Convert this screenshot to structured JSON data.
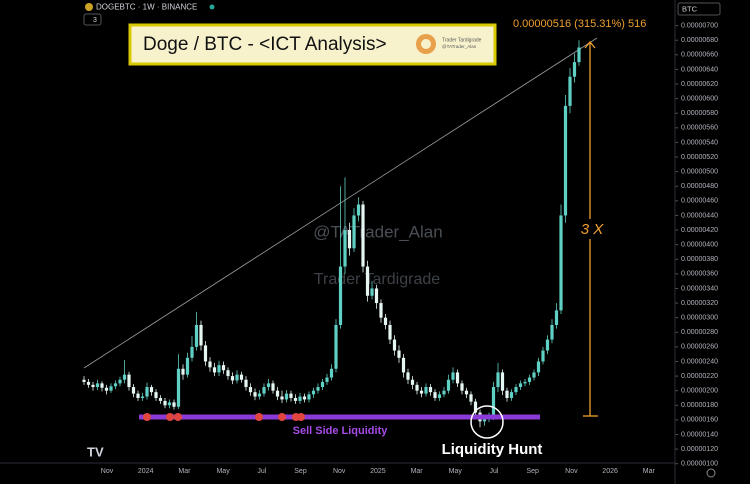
{
  "chart_data": {
    "type": "candlestick",
    "symbol_info": "DOGEBTC · 1W · BINANCE",
    "indicator_count": "3",
    "title": "Doge / BTC - <ICT Analysis>",
    "logo_texts": [
      "Trader Tardigrade",
      "@TATrader_Alan"
    ],
    "watermarks": [
      "@TATrader_Alan",
      "Trader Tardigrade"
    ],
    "measure_label": "0.00000516 (315.31%) 516",
    "multiplier_label": "3 X",
    "level_label": "Sell Side Liquidity",
    "hunt_label": "Liquidity Hunt",
    "price_unit": "BTC",
    "up_color": "#5fd0c4",
    "down_color": "#e6f6f3",
    "time_labels": [
      "Nov",
      "2024",
      "Mar",
      "May",
      "Jul",
      "Sep",
      "Nov",
      "2025",
      "Mar",
      "May",
      "Jul",
      "Sep",
      "Nov",
      "2026",
      "Mar"
    ],
    "ylim": [
      9e-07,
      7.2e-06
    ],
    "yticks": [
      {
        "value": 1e-06,
        "label": "0.00000100"
      },
      {
        "value": 1.2e-06,
        "label": "0.00000120"
      },
      {
        "value": 1.4e-06,
        "label": "0.00000140"
      },
      {
        "value": 1.6e-06,
        "label": "0.00000160"
      },
      {
        "value": 1.8e-06,
        "label": "0.00000180"
      },
      {
        "value": 2e-06,
        "label": "0.00000200"
      },
      {
        "value": 2.2e-06,
        "label": "0.00000220"
      },
      {
        "value": 2.4e-06,
        "label": "0.00000240"
      },
      {
        "value": 2.6e-06,
        "label": "0.00000260"
      },
      {
        "value": 2.8e-06,
        "label": "0.00000280"
      },
      {
        "value": 3e-06,
        "label": "0.00000300"
      },
      {
        "value": 3.2e-06,
        "label": "0.00000320"
      },
      {
        "value": 3.4e-06,
        "label": "0.00000340"
      },
      {
        "value": 3.6e-06,
        "label": "0.00000360"
      },
      {
        "value": 3.8e-06,
        "label": "0.00000380"
      },
      {
        "value": 4e-06,
        "label": "0.00000400"
      },
      {
        "value": 4.2e-06,
        "label": "0.00000420"
      },
      {
        "value": 4.4e-06,
        "label": "0.00000440"
      },
      {
        "value": 4.6e-06,
        "label": "0.00000460"
      },
      {
        "value": 4.8e-06,
        "label": "0.00000480"
      },
      {
        "value": 5e-06,
        "label": "0.00000500"
      },
      {
        "value": 5.2e-06,
        "label": "0.00000520"
      },
      {
        "value": 5.4e-06,
        "label": "0.00000540"
      },
      {
        "value": 5.6e-06,
        "label": "0.00000560"
      },
      {
        "value": 5.8e-06,
        "label": "0.00000580"
      },
      {
        "value": 6e-06,
        "label": "0.00000600"
      },
      {
        "value": 6.2e-06,
        "label": "0.00000620"
      },
      {
        "value": 6.4e-06,
        "label": "0.00000640"
      },
      {
        "value": 6.6e-06,
        "label": "0.00000660"
      },
      {
        "value": 6.8e-06,
        "label": "0.00000680"
      },
      {
        "value": 7e-06,
        "label": "0.00000700"
      }
    ],
    "open": [
      2.15e-06,
      2.12e-06,
      2.08e-06,
      2.05e-06,
      2.1e-06,
      2.04e-06,
      2e-06,
      2.06e-06,
      2.1e-06,
      2.15e-06,
      2.22e-06,
      2.05e-06,
      1.96e-06,
      1.9e-06,
      1.92e-06,
      2.05e-06,
      1.98e-06,
      1.9e-06,
      1.86e-06,
      1.8e-06,
      1.84e-06,
      1.78e-06,
      2.3e-06,
      2.22e-06,
      2.45e-06,
      2.6e-06,
      2.9e-06,
      2.62e-06,
      2.4e-06,
      2.32e-06,
      2.25e-06,
      2.35e-06,
      2.28e-06,
      2.2e-06,
      2.14e-06,
      2.22e-06,
      2.15e-06,
      2.05e-06,
      1.98e-06,
      1.92e-06,
      1.96e-06,
      2.05e-06,
      2.1e-06,
      2e-06,
      1.92e-06,
      1.88e-06,
      1.96e-06,
      1.9e-06,
      1.86e-06,
      1.92e-06,
      1.88e-06,
      1.95e-06,
      2e-06,
      2.05e-06,
      2.12e-06,
      2.18e-06,
      2.3e-06,
      2.9e-06,
      3.7e-06,
      4.2e-06,
      3.95e-06,
      4.4e-06,
      4.55e-06,
      3.7e-06,
      3.3e-06,
      3.4e-06,
      3.2e-06,
      3e-06,
      2.9e-06,
      2.7e-06,
      2.55e-06,
      2.45e-06,
      2.25e-06,
      2.15e-06,
      2.08e-06,
      2e-06,
      1.96e-06,
      2.05e-06,
      1.98e-06,
      1.9e-06,
      1.95e-06,
      2e-06,
      2.15e-06,
      2.25e-06,
      2.1e-06,
      2e-06,
      1.95e-06,
      1.85e-06,
      1.7e-06,
      1.58e-06,
      1.62e-06,
      1.65e-06,
      2.05e-06,
      2.25e-06,
      2e-06,
      1.9e-06,
      1.98e-06,
      2.05e-06,
      2.1e-06,
      2.12e-06,
      2.18e-06,
      2.25e-06,
      2.4e-06,
      2.55e-06,
      2.7e-06,
      2.9e-06,
      3.1e-06,
      4.4e-06,
      5.9e-06,
      6.3e-06,
      6.5e-06
    ],
    "high": [
      2.2e-06,
      2.16e-06,
      2.12e-06,
      2.15e-06,
      2.13e-06,
      2.08e-06,
      2.1e-06,
      2.14e-06,
      2.19e-06,
      2.42e-06,
      2.26e-06,
      2.09e-06,
      2e-06,
      1.97e-06,
      2.11e-06,
      2.08e-06,
      2.02e-06,
      1.94e-06,
      1.9e-06,
      1.88e-06,
      1.88e-06,
      2.5e-06,
      2.36e-06,
      2.52e-06,
      2.75e-06,
      3.08e-06,
      2.96e-06,
      2.68e-06,
      2.46e-06,
      2.38e-06,
      2.41e-06,
      2.4e-06,
      2.32e-06,
      2.25e-06,
      2.28e-06,
      2.26e-06,
      2.2e-06,
      2.1e-06,
      2.03e-06,
      2.01e-06,
      2.1e-06,
      2.16e-06,
      2.14e-06,
      2.05e-06,
      2e-06,
      2.01e-06,
      2e-06,
      1.95e-06,
      1.97e-06,
      1.96e-06,
      1.99e-06,
      2.04e-06,
      2.1e-06,
      2.16e-06,
      2.23e-06,
      2.36e-06,
      2.98e-06,
      4.8e-06,
      4.92e-06,
      4.3e-06,
      4.5e-06,
      4.65e-06,
      4.6e-06,
      3.78e-06,
      3.5e-06,
      3.45e-06,
      3.25e-06,
      3.05e-06,
      2.96e-06,
      2.76e-06,
      2.62e-06,
      2.5e-06,
      2.3e-06,
      2.2e-06,
      2.12e-06,
      2.05e-06,
      2.1e-06,
      2.09e-06,
      2.02e-06,
      1.99e-06,
      2.05e-06,
      2.22e-06,
      2.32e-06,
      2.29e-06,
      2.14e-06,
      2.04e-06,
      1.99e-06,
      1.89e-06,
      1.74e-06,
      1.67e-06,
      1.7e-06,
      2.12e-06,
      2.38e-06,
      2.29e-06,
      2.04e-06,
      2.02e-06,
      2.09e-06,
      2.14e-06,
      2.16e-06,
      2.22e-06,
      2.29e-06,
      2.45e-06,
      2.6e-06,
      2.76e-06,
      2.98e-06,
      3.2e-06,
      4.55e-06,
      6.05e-06,
      6.42e-06,
      6.62e-06,
      6.8e-06
    ],
    "low": [
      2.08e-06,
      2.04e-06,
      2e-06,
      2.01e-06,
      1.99e-06,
      1.95e-06,
      1.97e-06,
      2.02e-06,
      2.06e-06,
      2.1e-06,
      2e-06,
      1.91e-06,
      1.86e-06,
      1.86e-06,
      1.88e-06,
      1.93e-06,
      1.86e-06,
      1.82e-06,
      1.76e-06,
      1.76e-06,
      1.74e-06,
      1.75e-06,
      2.15e-06,
      2.18e-06,
      2.4e-06,
      2.55e-06,
      2.55e-06,
      2.34e-06,
      2.26e-06,
      2.2e-06,
      2.2e-06,
      2.23e-06,
      2.15e-06,
      2.09e-06,
      2.1e-06,
      2.11e-06,
      2e-06,
      1.93e-06,
      1.87e-06,
      1.88e-06,
      1.92e-06,
      2e-06,
      1.96e-06,
      1.87e-06,
      1.83e-06,
      1.84e-06,
      1.85e-06,
      1.82e-06,
      1.82e-06,
      1.84e-06,
      1.84e-06,
      1.9e-06,
      1.96e-06,
      2.01e-06,
      2.08e-06,
      2.14e-06,
      2.25e-06,
      2.85e-06,
      3.6e-06,
      3.85e-06,
      3.9e-06,
      4.32e-06,
      3.62e-06,
      3.22e-06,
      3.25e-06,
      3.12e-06,
      2.93e-06,
      2.84e-06,
      2.64e-06,
      2.48e-06,
      2.38e-06,
      2.18e-06,
      2.09e-06,
      2.02e-06,
      1.95e-06,
      1.91e-06,
      1.92e-06,
      1.93e-06,
      1.86e-06,
      1.86e-06,
      1.91e-06,
      1.96e-06,
      2.1e-06,
      2.05e-06,
      1.95e-06,
      1.9e-06,
      1.8e-06,
      1.63e-06,
      1.5e-06,
      1.52e-06,
      1.57e-06,
      1.6e-06,
      1.98e-06,
      1.94e-06,
      1.85e-06,
      1.86e-06,
      1.94e-06,
      2.01e-06,
      2.06e-06,
      2.08e-06,
      2.14e-06,
      2.2e-06,
      2.36e-06,
      2.5e-06,
      2.65e-06,
      2.85e-06,
      3.05e-06,
      4.3e-06,
      5.8e-06,
      6.22e-06,
      6.45e-06
    ],
    "close": [
      2.12e-06,
      2.08e-06,
      2.05e-06,
      2.1e-06,
      2.04e-06,
      2e-06,
      2.06e-06,
      2.1e-06,
      2.15e-06,
      2.22e-06,
      2.05e-06,
      1.96e-06,
      1.9e-06,
      1.92e-06,
      2.05e-06,
      1.98e-06,
      1.9e-06,
      1.86e-06,
      1.8e-06,
      1.84e-06,
      1.78e-06,
      2.3e-06,
      2.22e-06,
      2.45e-06,
      2.6e-06,
      2.9e-06,
      2.62e-06,
      2.4e-06,
      2.32e-06,
      2.25e-06,
      2.35e-06,
      2.28e-06,
      2.2e-06,
      2.14e-06,
      2.22e-06,
      2.15e-06,
      2.05e-06,
      1.98e-06,
      1.92e-06,
      1.96e-06,
      2.05e-06,
      2.1e-06,
      2e-06,
      1.92e-06,
      1.88e-06,
      1.96e-06,
      1.9e-06,
      1.86e-06,
      1.92e-06,
      1.88e-06,
      1.95e-06,
      2e-06,
      2.05e-06,
      2.12e-06,
      2.18e-06,
      2.3e-06,
      2.9e-06,
      3.7e-06,
      4.2e-06,
      3.95e-06,
      4.4e-06,
      4.55e-06,
      3.7e-06,
      3.3e-06,
      3.4e-06,
      3.2e-06,
      3e-06,
      2.9e-06,
      2.7e-06,
      2.55e-06,
      2.45e-06,
      2.25e-06,
      2.15e-06,
      2.08e-06,
      2e-06,
      1.96e-06,
      2.05e-06,
      1.98e-06,
      1.9e-06,
      1.95e-06,
      2e-06,
      2.15e-06,
      2.25e-06,
      2.1e-06,
      2e-06,
      1.95e-06,
      1.85e-06,
      1.7e-06,
      1.58e-06,
      1.62e-06,
      1.65e-06,
      2.05e-06,
      2.25e-06,
      2e-06,
      1.9e-06,
      1.98e-06,
      2.05e-06,
      2.1e-06,
      2.12e-06,
      2.18e-06,
      2.25e-06,
      2.4e-06,
      2.55e-06,
      2.7e-06,
      2.9e-06,
      3.1e-06,
      4.4e-06,
      5.9e-06,
      6.3e-06,
      6.5e-06,
      6.7e-06
    ]
  }
}
